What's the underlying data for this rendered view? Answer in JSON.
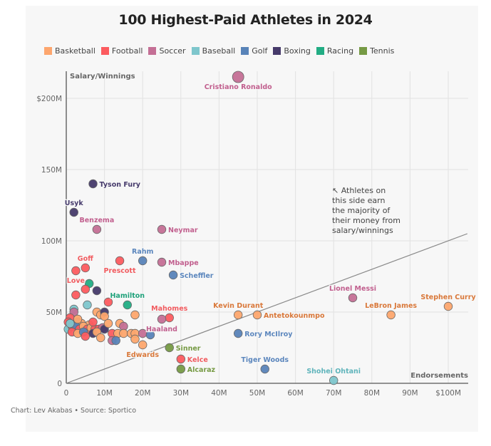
{
  "title": "100 Highest-Paid Athletes in 2024",
  "footer": "Chart: Lev Akabas • Source: Sportico",
  "note": "↖ Athletes on\nthis side earn\nthe majority of\ntheir money from\nsalary/winnings",
  "legend": [
    {
      "label": "Basketball",
      "color": "#fda66e"
    },
    {
      "label": "Football",
      "color": "#fc5b5f"
    },
    {
      "label": "Soccer",
      "color": "#c46f95"
    },
    {
      "label": "Baseball",
      "color": "#7ec6cc"
    },
    {
      "label": "Golf",
      "color": "#5883b8"
    },
    {
      "label": "Boxing",
      "color": "#463a6a"
    },
    {
      "label": "Racing",
      "color": "#22ad84"
    },
    {
      "label": "Tennis",
      "color": "#769a44"
    }
  ],
  "label_colors": {
    "Basketball": "#d9783a",
    "Football": "#f15b5f",
    "Soccer": "#c15f8e",
    "Baseball": "#5fb4bb",
    "Golf": "#5b86bd",
    "Boxing": "#453a6b",
    "Racing": "#1fa17a",
    "Tennis": "#769a44"
  },
  "chart_data": {
    "type": "scatter",
    "title": "100 Highest-Paid Athletes in 2024",
    "xlabel": "Endorsements",
    "ylabel": "Salary/Winnings",
    "xlim": [
      0,
      105
    ],
    "ylim": [
      0,
      220
    ],
    "units": "millions USD",
    "x_ticks": [
      {
        "v": 0,
        "label": "0"
      },
      {
        "v": 10,
        "label": "10M"
      },
      {
        "v": 20,
        "label": "20M"
      },
      {
        "v": 30,
        "label": "30M"
      },
      {
        "v": 40,
        "label": "40M"
      },
      {
        "v": 50,
        "label": "50M"
      },
      {
        "v": 60,
        "label": "60M"
      },
      {
        "v": 70,
        "label": "70M"
      },
      {
        "v": 80,
        "label": "80M"
      },
      {
        "v": 90,
        "label": "90M"
      },
      {
        "v": 100,
        "label": "$100M"
      }
    ],
    "y_ticks": [
      {
        "v": 0,
        "label": "0"
      },
      {
        "v": 50,
        "label": "50M"
      },
      {
        "v": 100,
        "label": "100M"
      },
      {
        "v": 150,
        "label": "150M"
      },
      {
        "v": 200,
        "label": "$200M"
      }
    ],
    "grid": true,
    "reference_line": {
      "description": "salary equals endorsements",
      "from": [
        0,
        0
      ],
      "to": [
        105,
        105
      ]
    },
    "legend_position": "top",
    "points": [
      {
        "name": "Cristiano Ronaldo",
        "sport": "Soccer",
        "x": 45,
        "y": 215,
        "label": true,
        "lpos": "below"
      },
      {
        "name": "Tyson Fury",
        "sport": "Boxing",
        "x": 7,
        "y": 140,
        "label": true,
        "lpos": "right"
      },
      {
        "name": "Usyk",
        "sport": "Boxing",
        "x": 2,
        "y": 120,
        "label": true,
        "lpos": "above"
      },
      {
        "name": "Benzema",
        "sport": "Soccer",
        "x": 8,
        "y": 108,
        "label": true,
        "lpos": "above"
      },
      {
        "name": "Neymar",
        "sport": "Soccer",
        "x": 25,
        "y": 108,
        "label": true,
        "lpos": "right"
      },
      {
        "name": "Rahm",
        "sport": "Golf",
        "x": 20,
        "y": 86,
        "label": true,
        "lpos": "above"
      },
      {
        "name": "Mbappe",
        "sport": "Soccer",
        "x": 25,
        "y": 85,
        "label": true,
        "lpos": "right"
      },
      {
        "name": "Scheffler",
        "sport": "Golf",
        "x": 28,
        "y": 76,
        "label": true,
        "lpos": "right"
      },
      {
        "name": "Prescott",
        "sport": "Football",
        "x": 14,
        "y": 86,
        "label": true,
        "lpos": "below"
      },
      {
        "name": "Goff",
        "sport": "Football",
        "x": 5,
        "y": 81,
        "label": true,
        "lpos": "above"
      },
      {
        "name": "Love",
        "sport": "Football",
        "x": 2.5,
        "y": 79,
        "label": true,
        "lpos": "below"
      },
      {
        "name": "Hamilton",
        "sport": "Racing",
        "x": 16,
        "y": 55,
        "label": true,
        "lpos": "above"
      },
      {
        "name": "Mahomes",
        "sport": "Football",
        "x": 27,
        "y": 46,
        "label": true,
        "lpos": "above"
      },
      {
        "name": "Haaland",
        "sport": "Soccer",
        "x": 25,
        "y": 45,
        "label": true,
        "lpos": "below"
      },
      {
        "name": "Edwards",
        "sport": "Basketball",
        "x": 20,
        "y": 27,
        "label": true,
        "lpos": "below"
      },
      {
        "name": "Sinner",
        "sport": "Tennis",
        "x": 27,
        "y": 25,
        "label": true,
        "lpos": "right"
      },
      {
        "name": "Kelce",
        "sport": "Football",
        "x": 30,
        "y": 17,
        "label": true,
        "lpos": "right"
      },
      {
        "name": "Alcaraz",
        "sport": "Tennis",
        "x": 30,
        "y": 10,
        "label": true,
        "lpos": "right"
      },
      {
        "name": "Kevin Durant",
        "sport": "Basketball",
        "x": 45,
        "y": 48,
        "label": true,
        "lpos": "above"
      },
      {
        "name": "Antetokounmpo",
        "sport": "Basketball",
        "x": 50,
        "y": 48,
        "label": true,
        "lpos": "right"
      },
      {
        "name": "Rory McIlroy",
        "sport": "Golf",
        "x": 45,
        "y": 35,
        "label": true,
        "lpos": "right"
      },
      {
        "name": "Tiger Woods",
        "sport": "Golf",
        "x": 52,
        "y": 10,
        "label": true,
        "lpos": "above"
      },
      {
        "name": "Shohei Ohtani",
        "sport": "Baseball",
        "x": 70,
        "y": 2,
        "label": true,
        "lpos": "above"
      },
      {
        "name": "Lionel Messi",
        "sport": "Soccer",
        "x": 75,
        "y": 60,
        "label": true,
        "lpos": "above"
      },
      {
        "name": "LeBron James",
        "sport": "Basketball",
        "x": 85,
        "y": 48,
        "label": true,
        "lpos": "above"
      },
      {
        "name": "Stephen Curry",
        "sport": "Basketball",
        "x": 100,
        "y": 54,
        "label": true,
        "lpos": "above"
      },
      {
        "name": "",
        "sport": "Football",
        "x": 11,
        "y": 57
      },
      {
        "name": "",
        "sport": "Racing",
        "x": 6,
        "y": 70
      },
      {
        "name": "",
        "sport": "Football",
        "x": 2.5,
        "y": 62
      },
      {
        "name": "",
        "sport": "Football",
        "x": 5,
        "y": 66
      },
      {
        "name": "",
        "sport": "Boxing",
        "x": 8,
        "y": 65
      },
      {
        "name": "",
        "sport": "Baseball",
        "x": 5.5,
        "y": 55
      },
      {
        "name": "",
        "sport": "Baseball",
        "x": 2,
        "y": 52
      },
      {
        "name": "",
        "sport": "Soccer",
        "x": 2,
        "y": 50
      },
      {
        "name": "",
        "sport": "Basketball",
        "x": 8,
        "y": 50
      },
      {
        "name": "",
        "sport": "Basketball",
        "x": 9,
        "y": 48
      },
      {
        "name": "",
        "sport": "Boxing",
        "x": 10,
        "y": 50
      },
      {
        "name": "",
        "sport": "Basketball",
        "x": 10,
        "y": 47
      },
      {
        "name": "",
        "sport": "Basketball",
        "x": 18,
        "y": 48
      },
      {
        "name": "",
        "sport": "Football",
        "x": 1,
        "y": 46
      },
      {
        "name": "",
        "sport": "Football",
        "x": 0.5,
        "y": 43
      },
      {
        "name": "",
        "sport": "Golf",
        "x": 3,
        "y": 43
      },
      {
        "name": "",
        "sport": "Basketball",
        "x": 4,
        "y": 42
      },
      {
        "name": "",
        "sport": "Basketball",
        "x": 6,
        "y": 41
      },
      {
        "name": "",
        "sport": "Basketball",
        "x": 14,
        "y": 42
      },
      {
        "name": "",
        "sport": "Baseball",
        "x": 0.5,
        "y": 38
      },
      {
        "name": "",
        "sport": "Football",
        "x": 1.5,
        "y": 40
      },
      {
        "name": "",
        "sport": "Golf",
        "x": 2.5,
        "y": 40
      },
      {
        "name": "",
        "sport": "Football",
        "x": 3.5,
        "y": 38
      },
      {
        "name": "",
        "sport": "Basketball",
        "x": 4.5,
        "y": 40
      },
      {
        "name": "",
        "sport": "Football",
        "x": 5.5,
        "y": 38
      },
      {
        "name": "",
        "sport": "Basketball",
        "x": 6.5,
        "y": 39
      },
      {
        "name": "",
        "sport": "Football",
        "x": 7.5,
        "y": 38
      },
      {
        "name": "",
        "sport": "Football",
        "x": 8.5,
        "y": 38
      },
      {
        "name": "",
        "sport": "Soccer",
        "x": 9.5,
        "y": 39
      },
      {
        "name": "",
        "sport": "Boxing",
        "x": 10,
        "y": 38
      },
      {
        "name": "",
        "sport": "Soccer",
        "x": 15,
        "y": 40
      },
      {
        "name": "",
        "sport": "Football",
        "x": 1.5,
        "y": 36
      },
      {
        "name": "",
        "sport": "Basketball",
        "x": 3,
        "y": 35
      },
      {
        "name": "",
        "sport": "Golf",
        "x": 4.5,
        "y": 36
      },
      {
        "name": "",
        "sport": "Football",
        "x": 5,
        "y": 33
      },
      {
        "name": "",
        "sport": "Boxing",
        "x": 7,
        "y": 35
      },
      {
        "name": "",
        "sport": "Basketball",
        "x": 8,
        "y": 36
      },
      {
        "name": "",
        "sport": "Football",
        "x": 12,
        "y": 35
      },
      {
        "name": "",
        "sport": "Basketball",
        "x": 13.5,
        "y": 35
      },
      {
        "name": "",
        "sport": "Basketball",
        "x": 15,
        "y": 35
      },
      {
        "name": "",
        "sport": "Basketball",
        "x": 17,
        "y": 35
      },
      {
        "name": "",
        "sport": "Basketball",
        "x": 18,
        "y": 35
      },
      {
        "name": "",
        "sport": "Soccer",
        "x": 20,
        "y": 35
      },
      {
        "name": "",
        "sport": "Golf",
        "x": 22,
        "y": 34
      },
      {
        "name": "",
        "sport": "Basketball",
        "x": 9,
        "y": 32
      },
      {
        "name": "",
        "sport": "Soccer",
        "x": 12,
        "y": 30
      },
      {
        "name": "",
        "sport": "Golf",
        "x": 13,
        "y": 30
      },
      {
        "name": "",
        "sport": "Basketball",
        "x": 18,
        "y": 31
      },
      {
        "name": "",
        "sport": "Basketball",
        "x": 3,
        "y": 45
      },
      {
        "name": "",
        "sport": "Football",
        "x": 7,
        "y": 43
      },
      {
        "name": "",
        "sport": "Baseball",
        "x": 1,
        "y": 42
      },
      {
        "name": "",
        "sport": "Basketball",
        "x": 11,
        "y": 42
      }
    ]
  }
}
